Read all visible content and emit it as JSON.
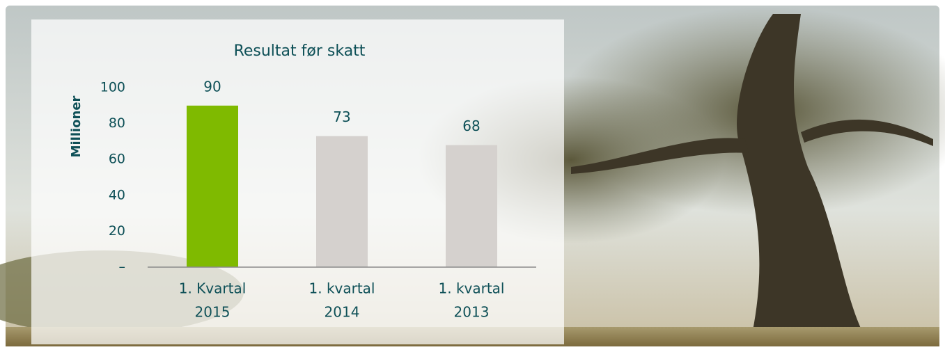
{
  "chart_data": {
    "type": "bar",
    "title": "Resultat før skatt",
    "y_label": "Millioner",
    "categories": [
      [
        "1. Kvartal",
        "2015"
      ],
      [
        "1. kvartal",
        "2014"
      ],
      [
        "1. kvartal",
        "2013"
      ]
    ],
    "values": [
      90,
      73,
      68
    ],
    "colors": [
      "#7fba00",
      "#d5d1ce",
      "#d5d1ce"
    ],
    "ylim": [
      0,
      100
    ],
    "yticks": [
      {
        "value": 0,
        "label": "–"
      },
      20,
      40,
      60,
      80,
      100
    ],
    "grid": false
  }
}
